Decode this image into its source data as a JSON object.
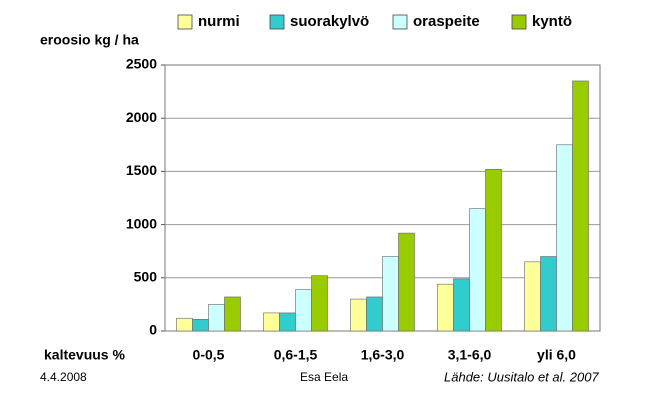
{
  "chart_data": {
    "type": "bar",
    "y_label": "eroosio kg / ha",
    "x_label": "kaltevuus %",
    "categories": [
      "0-0,5",
      "0,6-1,5",
      "1,6-3,0",
      "3,1-6,0",
      "yli 6,0"
    ],
    "series": [
      {
        "name": "nurmi",
        "color": "#ffff99",
        "values": [
          120,
          170,
          300,
          440,
          650
        ]
      },
      {
        "name": "suorakylvö",
        "color": "#33cccc",
        "values": [
          110,
          170,
          320,
          490,
          700
        ]
      },
      {
        "name": "oraspeite",
        "color": "#ccffff",
        "values": [
          250,
          390,
          700,
          1150,
          1750
        ]
      },
      {
        "name": "kyntö",
        "color": "#99cc00",
        "values": [
          320,
          520,
          920,
          1520,
          2350
        ]
      }
    ],
    "ylim": [
      0,
      2500
    ],
    "yticks": [
      0,
      500,
      1000,
      1500,
      2000,
      2500
    ],
    "grid": true,
    "legend": "top"
  },
  "footer": {
    "date": "4.4.2008",
    "author": "Esa Eela",
    "source": "Lähde: Uusitalo et al. 2007"
  }
}
